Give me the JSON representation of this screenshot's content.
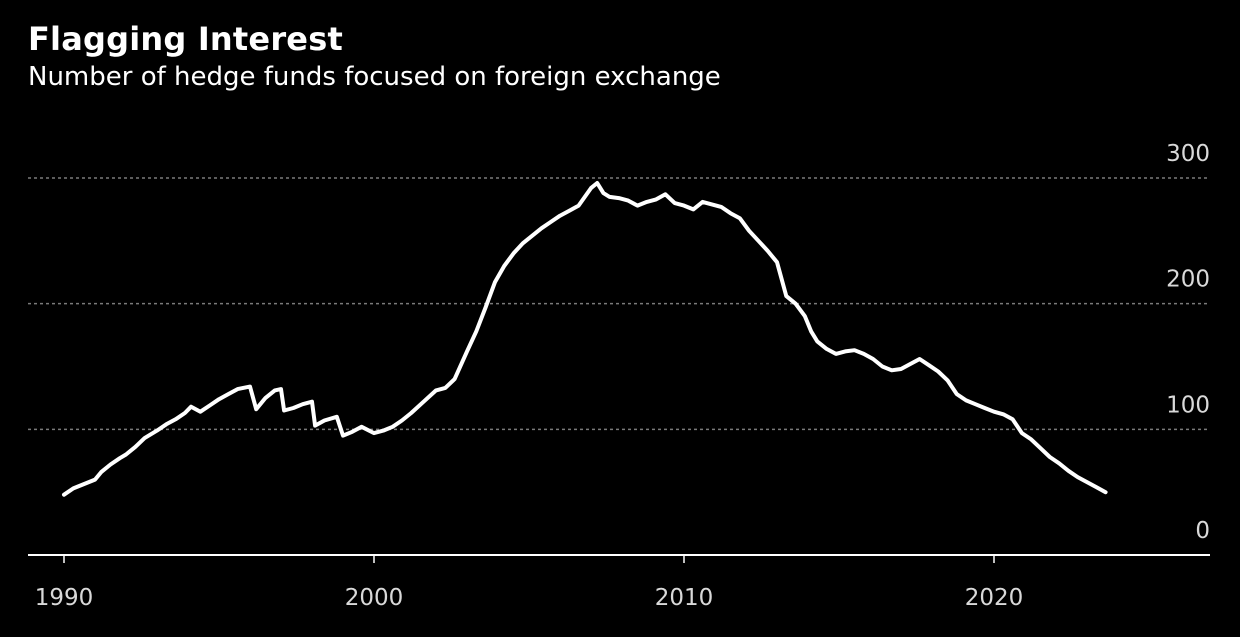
{
  "title": "Flagging Interest",
  "subtitle": "Number of hedge funds focused on foreign exchange",
  "colors": {
    "background": "#000000",
    "line": "#ffffff",
    "grid": "#7a7a7a",
    "axis": "#ffffff",
    "text": "#d9d9d9"
  },
  "chart_data": {
    "type": "line",
    "title": "Flagging Interest",
    "subtitle": "Number of hedge funds focused on foreign exchange",
    "xlabel": "",
    "ylabel": "",
    "xlim": [
      1989,
      2027
    ],
    "ylim": [
      0,
      300
    ],
    "x_ticks": [
      1990,
      2000,
      2010,
      2020
    ],
    "y_ticks": [
      0,
      100,
      200,
      300
    ],
    "grid": "horizontal dotted",
    "legend": "none",
    "series": [
      {
        "x": [
          1990.0,
          1990.3,
          1990.6,
          1991.0,
          1991.2,
          1991.5,
          1991.8,
          1992.0,
          1992.3,
          1992.6,
          1993.0,
          1993.3,
          1993.6,
          1993.9,
          1994.1,
          1994.4,
          1994.7,
          1995.0,
          1995.3,
          1995.6,
          1996.0,
          1996.2,
          1996.5,
          1996.8,
          1997.0,
          1997.1,
          1997.4,
          1997.7,
          1998.0,
          1998.1,
          1998.4,
          1998.8,
          1999.0,
          1999.3,
          1999.6,
          2000.0,
          2000.3,
          2000.6,
          2000.9,
          2001.2,
          2001.6,
          2002.0,
          2002.3,
          2002.6,
          2003.0,
          2003.3,
          2003.6,
          2003.9,
          2004.2,
          2004.5,
          2004.8,
          2005.1,
          2005.4,
          2005.7,
          2006.0,
          2006.3,
          2006.6,
          2007.0,
          2007.2,
          2007.4,
          2007.6,
          2007.9,
          2008.2,
          2008.5,
          2008.8,
          2009.1,
          2009.4,
          2009.7,
          2010.0,
          2010.3,
          2010.6,
          2010.9,
          2011.2,
          2011.5,
          2011.8,
          2012.1,
          2012.4,
          2012.7,
          2013.0,
          2013.3,
          2013.6,
          2013.9,
          2014.1,
          2014.3,
          2014.6,
          2014.9,
          2015.2,
          2015.5,
          2015.8,
          2016.1,
          2016.4,
          2016.7,
          2017.0,
          2017.3,
          2017.6,
          2017.9,
          2018.2,
          2018.5,
          2018.8,
          2019.1,
          2019.4,
          2019.7,
          2020.0,
          2020.3,
          2020.6,
          2020.9,
          2021.2,
          2021.5,
          2021.8,
          2022.1,
          2022.4,
          2022.7,
          2023.0,
          2023.3,
          2023.6
        ],
        "values": [
          48,
          53,
          56,
          60,
          66,
          72,
          77,
          80,
          86,
          93,
          99,
          104,
          108,
          113,
          118,
          114,
          119,
          124,
          128,
          132,
          134,
          116,
          125,
          131,
          132,
          115,
          117,
          120,
          122,
          103,
          107,
          110,
          95,
          98,
          102,
          97,
          99,
          102,
          107,
          113,
          122,
          131,
          133,
          140,
          162,
          178,
          197,
          217,
          230,
          240,
          248,
          254,
          260,
          265,
          270,
          274,
          278,
          292,
          296,
          288,
          285,
          284,
          282,
          278,
          281,
          283,
          287,
          280,
          278,
          275,
          281,
          279,
          277,
          272,
          268,
          258,
          250,
          242,
          233,
          206,
          200,
          190,
          178,
          170,
          164,
          160,
          162,
          163,
          160,
          156,
          150,
          147,
          148,
          152,
          156,
          151,
          146,
          139,
          128,
          123,
          120,
          117,
          114,
          112,
          108,
          97,
          92,
          85,
          78,
          73,
          67,
          62,
          58,
          54,
          50
        ]
      }
    ]
  }
}
